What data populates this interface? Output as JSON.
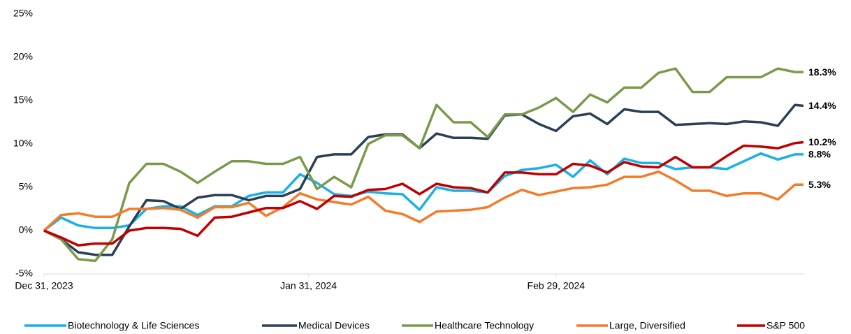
{
  "chart_data": {
    "type": "line",
    "x": [
      0,
      2,
      4,
      6,
      8,
      10,
      12,
      14,
      16,
      18,
      20,
      22,
      24,
      26,
      28,
      30,
      32,
      34,
      36,
      38,
      40,
      42,
      44,
      46,
      48,
      50,
      52,
      54,
      56,
      58,
      60,
      62,
      64,
      66,
      68,
      70,
      72,
      74,
      76,
      78,
      80,
      82,
      84,
      86,
      88,
      89
    ],
    "xlim": [
      0,
      89
    ],
    "xticks": [
      {
        "value": 0,
        "label": "Dec 31, 2023"
      },
      {
        "value": 31,
        "label": "Jan 31, 2024"
      },
      {
        "value": 60,
        "label": "Feb 29, 2024"
      }
    ],
    "ylim": [
      -5,
      25
    ],
    "yticks": [
      {
        "value": -5,
        "label": "-5%"
      },
      {
        "value": 0,
        "label": "0%"
      },
      {
        "value": 5,
        "label": "5%"
      },
      {
        "value": 10,
        "label": "10%"
      },
      {
        "value": 15,
        "label": "15%"
      },
      {
        "value": 20,
        "label": "20%"
      },
      {
        "value": 25,
        "label": "25%"
      }
    ],
    "grid": false,
    "legend": "bottom",
    "series": [
      {
        "name": "Biotechnology & Life Sciences",
        "color": "#1ab0e8",
        "values": [
          0,
          1.5,
          0.6,
          0.3,
          0.3,
          0.6,
          2.5,
          2.8,
          2.8,
          1.8,
          2.8,
          2.8,
          4,
          4.4,
          4.4,
          6.5,
          5.5,
          4.2,
          4.0,
          4.5,
          4.3,
          4.2,
          2.4,
          5,
          4.6,
          4.6,
          4.4,
          6.3,
          7,
          7.2,
          7.6,
          6.2,
          8.1,
          6.5,
          8.3,
          7.8,
          7.8,
          7.1,
          7.3,
          7.3,
          7.1,
          8,
          8.9,
          8.2,
          8.8,
          8.8
        ],
        "value_labels": [
          null,
          null,
          null,
          null,
          null,
          null,
          null,
          null,
          null,
          null,
          null,
          null,
          null,
          null,
          null,
          null,
          null,
          null,
          null,
          null,
          null,
          null,
          null,
          null,
          null,
          null,
          null,
          null,
          null,
          null,
          null,
          null,
          null,
          null,
          null,
          null,
          null,
          null,
          null,
          null,
          null,
          null,
          null,
          null,
          null,
          "8.8%"
        ]
      },
      {
        "name": "Medical Devices",
        "color": "#2b3f55",
        "values": [
          0,
          -1,
          -2.5,
          -2.8,
          -2.8,
          0.5,
          3.5,
          3.4,
          2.5,
          3.8,
          4.1,
          4.1,
          3.5,
          4,
          4,
          4.8,
          8.5,
          8.8,
          8.8,
          10.8,
          11.1,
          11.1,
          9.5,
          11.2,
          10.7,
          10.7,
          10.6,
          13.3,
          13.4,
          12.3,
          11.5,
          13.2,
          13.5,
          12.3,
          14,
          13.7,
          13.7,
          12.2,
          12.3,
          12.4,
          12.3,
          12.6,
          12.5,
          12.1,
          14.5,
          14.4
        ],
        "value_labels": [
          null,
          null,
          null,
          null,
          null,
          null,
          null,
          null,
          null,
          null,
          null,
          null,
          null,
          null,
          null,
          null,
          null,
          null,
          null,
          null,
          null,
          null,
          null,
          null,
          null,
          null,
          null,
          null,
          null,
          null,
          null,
          null,
          null,
          null,
          null,
          null,
          null,
          null,
          null,
          null,
          null,
          null,
          null,
          null,
          null,
          "14.4%"
        ]
      },
      {
        "name": "Healthcare Technology",
        "color": "#7a9a4b",
        "values": [
          0,
          -1,
          -3.3,
          -3.5,
          -1,
          5.5,
          7.7,
          7.7,
          6.8,
          5.5,
          6.8,
          8,
          8,
          7.7,
          7.7,
          8.5,
          4.8,
          6.2,
          5,
          10,
          11,
          11,
          9.5,
          14.5,
          12.5,
          12.5,
          10.8,
          13.4,
          13.4,
          14.2,
          15.3,
          13.7,
          15.7,
          14.8,
          16.5,
          16.5,
          18.2,
          18.7,
          16,
          16,
          17.7,
          17.7,
          17.7,
          18.7,
          18.3,
          18.3
        ],
        "value_labels": [
          null,
          null,
          null,
          null,
          null,
          null,
          null,
          null,
          null,
          null,
          null,
          null,
          null,
          null,
          null,
          null,
          null,
          null,
          null,
          null,
          null,
          null,
          null,
          null,
          null,
          null,
          null,
          null,
          null,
          null,
          null,
          null,
          null,
          null,
          null,
          null,
          null,
          null,
          null,
          null,
          null,
          null,
          null,
          null,
          null,
          "18.3%"
        ]
      },
      {
        "name": "Large, Diversified",
        "color": "#f47b2a",
        "values": [
          0,
          1.8,
          2.0,
          1.6,
          1.6,
          2.5,
          2.5,
          2.6,
          2.4,
          1.5,
          2.7,
          2.7,
          3.2,
          1.7,
          2.7,
          4.3,
          3.6,
          3.3,
          3.0,
          3.9,
          2.3,
          1.9,
          1.0,
          2.2,
          2.3,
          2.4,
          2.7,
          3.8,
          4.7,
          4.1,
          4.5,
          4.9,
          5.0,
          5.3,
          6.2,
          6.2,
          6.8,
          5.8,
          4.6,
          4.6,
          4.0,
          4.3,
          4.3,
          3.6,
          5.3,
          5.3
        ],
        "value_labels": [
          null,
          null,
          null,
          null,
          null,
          null,
          null,
          null,
          null,
          null,
          null,
          null,
          null,
          null,
          null,
          null,
          null,
          null,
          null,
          null,
          null,
          null,
          null,
          null,
          null,
          null,
          null,
          null,
          null,
          null,
          null,
          null,
          null,
          null,
          null,
          null,
          null,
          null,
          null,
          null,
          null,
          null,
          null,
          null,
          null,
          "5.3%"
        ]
      },
      {
        "name": "S&P 500",
        "color": "#c00000",
        "values": [
          0,
          -0.8,
          -1.7,
          -1.5,
          -1.5,
          0,
          0.3,
          0.3,
          0.2,
          -0.6,
          1.5,
          1.6,
          2.1,
          2.6,
          2.6,
          3.4,
          2.5,
          4.0,
          3.9,
          4.7,
          4.8,
          5.4,
          4.2,
          5.4,
          5.0,
          4.9,
          4.4,
          6.7,
          6.7,
          6.5,
          6.5,
          7.7,
          7.5,
          6.7,
          7.9,
          7.4,
          7.3,
          8.5,
          7.3,
          7.3,
          8.6,
          9.8,
          9.7,
          9.5,
          10.1,
          10.2
        ],
        "value_labels": [
          null,
          null,
          null,
          null,
          null,
          null,
          null,
          null,
          null,
          null,
          null,
          null,
          null,
          null,
          null,
          null,
          null,
          null,
          null,
          null,
          null,
          null,
          null,
          null,
          null,
          null,
          null,
          null,
          null,
          null,
          null,
          null,
          null,
          null,
          null,
          null,
          null,
          null,
          null,
          null,
          null,
          null,
          null,
          null,
          null,
          "10.2%"
        ]
      }
    ]
  }
}
